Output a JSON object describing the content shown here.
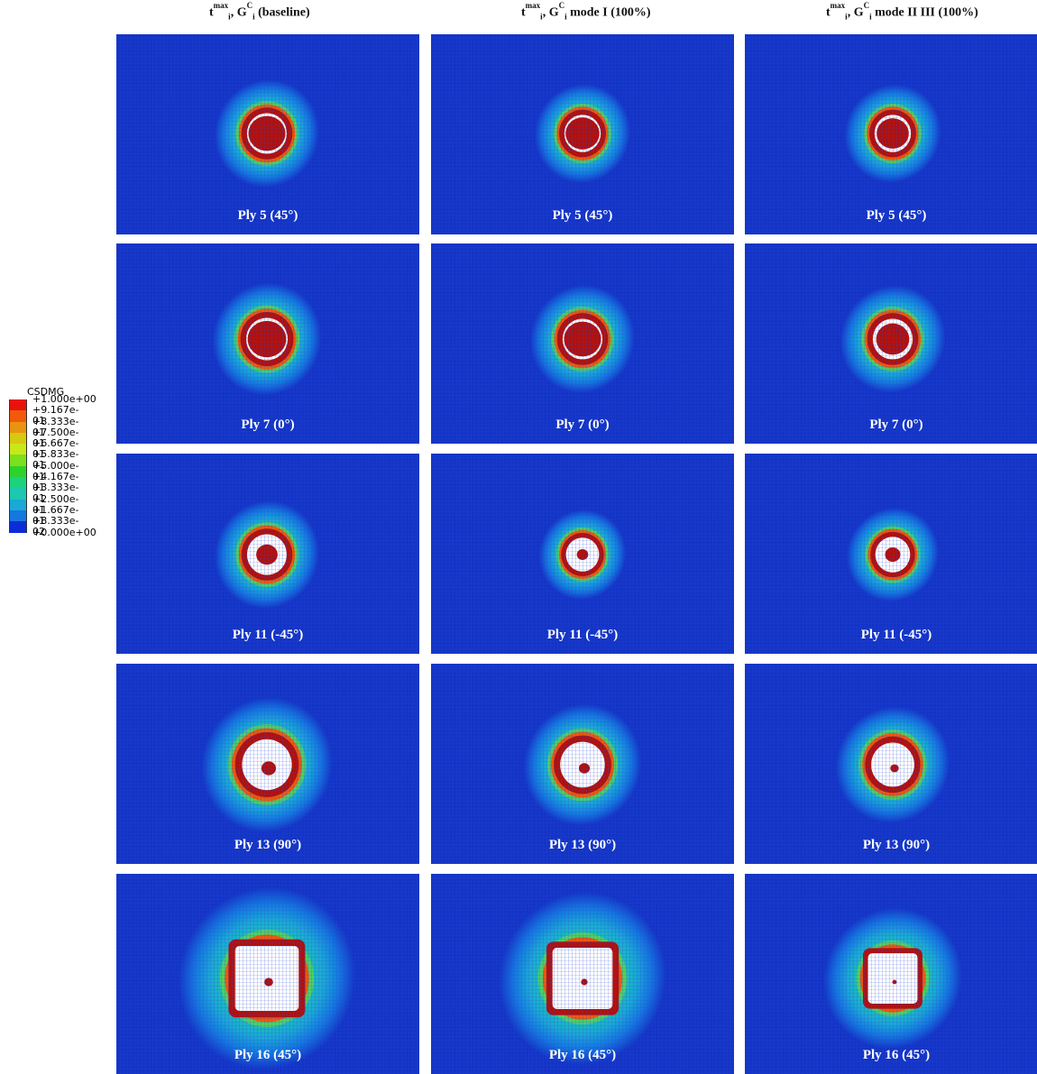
{
  "columns": [
    {
      "main": "t",
      "sup": "max",
      "sub": "i",
      "sep": ",",
      "g": "G",
      "gsup": "C",
      "gsub": "i",
      "suffix": "(baseline)"
    },
    {
      "main": "t",
      "sup": "max",
      "sub": "i",
      "sep": ",",
      "g": "G",
      "gsup": "C",
      "gsub": "i",
      "suffix": "mode I (100%)"
    },
    {
      "main": "t",
      "sup": "max",
      "sub": "i",
      "sep": ",",
      "g": "G",
      "gsup": "C",
      "gsub": "i",
      "suffix": "mode II III (100%)"
    }
  ],
  "rows": [
    {
      "label": "Ply 5 (45°)"
    },
    {
      "label": "Ply 7 (0°)"
    },
    {
      "label": "Ply 11 (-45°)"
    },
    {
      "label": "Ply 13 (90°)"
    },
    {
      "label": "Ply 16 (45°)"
    }
  ],
  "legend": {
    "title": "CSDMG",
    "labels": [
      "+1.000e+00",
      "+9.167e-01",
      "+8.333e-01",
      "+7.500e-01",
      "+6.667e-01",
      "+5.833e-01",
      "+5.000e-01",
      "+4.167e-01",
      "+3.333e-01",
      "+2.500e-01",
      "+1.667e-01",
      "+8.333e-02",
      "+0.000e+00"
    ],
    "colors": [
      "#e8140c",
      "#f05a0a",
      "#e89410",
      "#d8c810",
      "#c8e81a",
      "#7ce01c",
      "#2ed22c",
      "#1cd27c",
      "#1cc8b0",
      "#1aa8d6",
      "#1478e0",
      "#0c2cd8"
    ]
  },
  "colors": {
    "background": "#1334c6",
    "grid": "#2a48d0",
    "damage": "#b30f0a",
    "hole": "#ffffff",
    "label": "#ffffff"
  }
}
